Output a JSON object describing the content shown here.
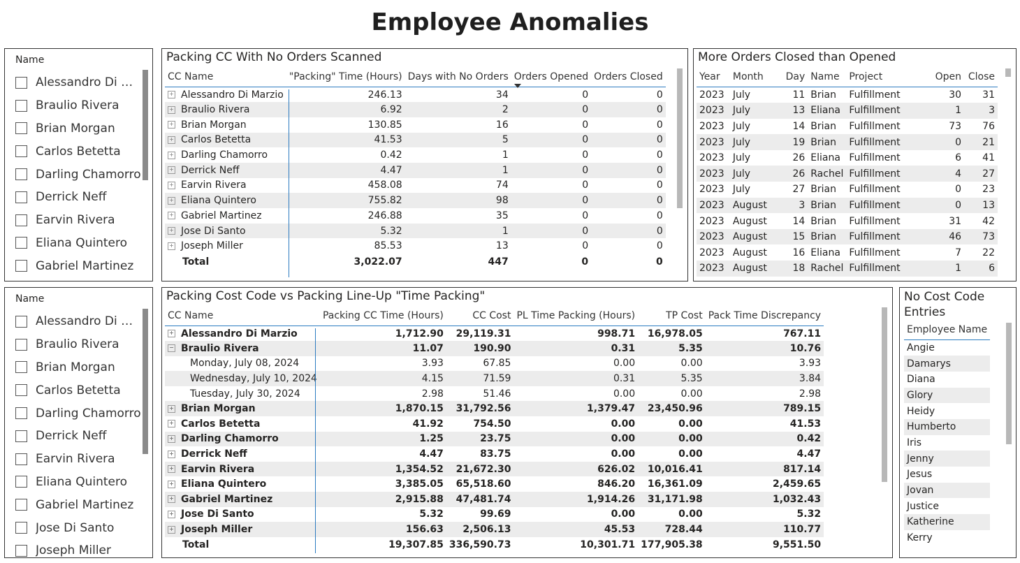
{
  "page_title": "Employee Anomalies",
  "slicer_top": {
    "header": "Name",
    "items": [
      "Alessandro Di Mar...",
      "Braulio Rivera",
      "Brian Morgan",
      "Carlos Betetta",
      "Darling Chamorro",
      "Derrick Neff",
      "Earvin Rivera",
      "Eliana Quintero",
      "Gabriel Martinez"
    ]
  },
  "slicer_bottom": {
    "header": "Name",
    "items": [
      "Alessandro Di Mar...",
      "Braulio Rivera",
      "Brian Morgan",
      "Carlos Betetta",
      "Darling Chamorro",
      "Derrick Neff",
      "Earvin Rivera",
      "Eliana Quintero",
      "Gabriel Martinez",
      "Jose Di Santo",
      "Joseph Miller"
    ]
  },
  "packing_cc": {
    "title": "Packing CC With No Orders Scanned",
    "columns": [
      "CC Name",
      "\"Packing\" Time (Hours)",
      "Days with No Orders",
      "Orders Opened",
      "Orders Closed"
    ],
    "rows": [
      [
        "Alessandro Di Marzio",
        "246.13",
        "34",
        "0",
        "0"
      ],
      [
        "Braulio Rivera",
        "6.92",
        "2",
        "0",
        "0"
      ],
      [
        "Brian Morgan",
        "130.85",
        "16",
        "0",
        "0"
      ],
      [
        "Carlos Betetta",
        "41.53",
        "5",
        "0",
        "0"
      ],
      [
        "Darling Chamorro",
        "0.42",
        "1",
        "0",
        "0"
      ],
      [
        "Derrick Neff",
        "4.47",
        "1",
        "0",
        "0"
      ],
      [
        "Earvin Rivera",
        "458.08",
        "74",
        "0",
        "0"
      ],
      [
        "Eliana Quintero",
        "755.82",
        "98",
        "0",
        "0"
      ],
      [
        "Gabriel Martinez",
        "246.88",
        "35",
        "0",
        "0"
      ],
      [
        "Jose Di Santo",
        "5.32",
        "1",
        "0",
        "0"
      ],
      [
        "Joseph Miller",
        "85.53",
        "13",
        "0",
        "0"
      ]
    ],
    "total": [
      "Total",
      "3,022.07",
      "447",
      "0",
      "0"
    ]
  },
  "more_orders": {
    "title": "More Orders Closed than Opened",
    "columns": [
      "Year",
      "Month",
      "Day",
      "Name",
      "Project",
      "Open",
      "Close"
    ],
    "rows": [
      [
        "2023",
        "July",
        "11",
        "Brian",
        "Fulfillment",
        "30",
        "31"
      ],
      [
        "2023",
        "July",
        "13",
        "Eliana",
        "Fulfillment",
        "1",
        "3"
      ],
      [
        "2023",
        "July",
        "14",
        "Brian",
        "Fulfillment",
        "73",
        "76"
      ],
      [
        "2023",
        "July",
        "19",
        "Brian",
        "Fulfillment",
        "0",
        "21"
      ],
      [
        "2023",
        "July",
        "26",
        "Eliana",
        "Fulfillment",
        "6",
        "41"
      ],
      [
        "2023",
        "July",
        "26",
        "Rachel",
        "Fulfillment",
        "4",
        "27"
      ],
      [
        "2023",
        "July",
        "27",
        "Brian",
        "Fulfillment",
        "0",
        "23"
      ],
      [
        "2023",
        "August",
        "3",
        "Brian",
        "Fulfillment",
        "0",
        "13"
      ],
      [
        "2023",
        "August",
        "14",
        "Brian",
        "Fulfillment",
        "31",
        "42"
      ],
      [
        "2023",
        "August",
        "15",
        "Brian",
        "Fulfillment",
        "46",
        "73"
      ],
      [
        "2023",
        "August",
        "16",
        "Eliana",
        "Fulfillment",
        "7",
        "22"
      ],
      [
        "2023",
        "August",
        "18",
        "Rachel",
        "Fulfillment",
        "1",
        "6"
      ]
    ]
  },
  "cost_code": {
    "title": "Packing Cost Code vs Packing Line-Up \"Time Packing\"",
    "columns": [
      "CC Name",
      "Packing CC Time (Hours)",
      "CC Cost",
      "PL Time Packing (Hours)",
      "TP Cost",
      "Pack Time Discrepancy"
    ],
    "rows": [
      {
        "kind": "parent",
        "expand": "+",
        "cells": [
          "Alessandro Di Marzio",
          "1,712.90",
          "29,119.31",
          "998.71",
          "16,978.05",
          "767.11"
        ]
      },
      {
        "kind": "parent",
        "expand": "-",
        "cells": [
          "Braulio Rivera",
          "11.07",
          "190.90",
          "0.31",
          "5.35",
          "10.76"
        ]
      },
      {
        "kind": "child",
        "cells": [
          "Monday, July 08, 2024",
          "3.93",
          "67.85",
          "0.00",
          "0.00",
          "3.93"
        ]
      },
      {
        "kind": "child",
        "cells": [
          "Wednesday, July 10, 2024",
          "4.15",
          "71.59",
          "0.31",
          "5.35",
          "3.84"
        ]
      },
      {
        "kind": "child",
        "cells": [
          "Tuesday, July 30, 2024",
          "2.98",
          "51.46",
          "0.00",
          "0.00",
          "2.98"
        ]
      },
      {
        "kind": "parent",
        "expand": "+",
        "cells": [
          "Brian Morgan",
          "1,870.15",
          "31,792.56",
          "1,379.47",
          "23,450.96",
          "789.15"
        ]
      },
      {
        "kind": "parent",
        "expand": "+",
        "cells": [
          "Carlos Betetta",
          "41.92",
          "754.50",
          "0.00",
          "0.00",
          "41.53"
        ]
      },
      {
        "kind": "parent",
        "expand": "+",
        "cells": [
          "Darling Chamorro",
          "1.25",
          "23.75",
          "0.00",
          "0.00",
          "0.42"
        ]
      },
      {
        "kind": "parent",
        "expand": "+",
        "cells": [
          "Derrick Neff",
          "4.47",
          "83.75",
          "0.00",
          "0.00",
          "4.47"
        ]
      },
      {
        "kind": "parent",
        "expand": "+",
        "cells": [
          "Earvin Rivera",
          "1,354.52",
          "21,672.30",
          "626.02",
          "10,016.41",
          "817.14"
        ]
      },
      {
        "kind": "parent",
        "expand": "+",
        "cells": [
          "Eliana Quintero",
          "3,385.05",
          "65,518.60",
          "846.20",
          "16,361.09",
          "2,459.65"
        ]
      },
      {
        "kind": "parent",
        "expand": "+",
        "cells": [
          "Gabriel Martinez",
          "2,915.88",
          "47,481.74",
          "1,914.26",
          "31,171.98",
          "1,032.43"
        ]
      },
      {
        "kind": "parent",
        "expand": "+",
        "cells": [
          "Jose Di Santo",
          "5.32",
          "99.69",
          "0.00",
          "0.00",
          "5.32"
        ]
      },
      {
        "kind": "parent",
        "expand": "+",
        "cells": [
          "Joseph Miller",
          "156.63",
          "2,506.13",
          "45.53",
          "728.44",
          "110.77"
        ]
      }
    ],
    "total": [
      "Total",
      "19,307.85",
      "336,590.73",
      "10,301.71",
      "177,905.38",
      "9,551.50"
    ]
  },
  "no_cost_code": {
    "title_line1": "No Cost Code",
    "title_line2": "Entries",
    "column": "Employee Name",
    "rows": [
      "Angie",
      "Damarys",
      "Diana",
      "Glory",
      "Heidy",
      "Humberto",
      "Iris",
      "Jenny",
      "Jesus",
      "Jovan",
      "Justice",
      "Katherine",
      "Kerry"
    ]
  }
}
